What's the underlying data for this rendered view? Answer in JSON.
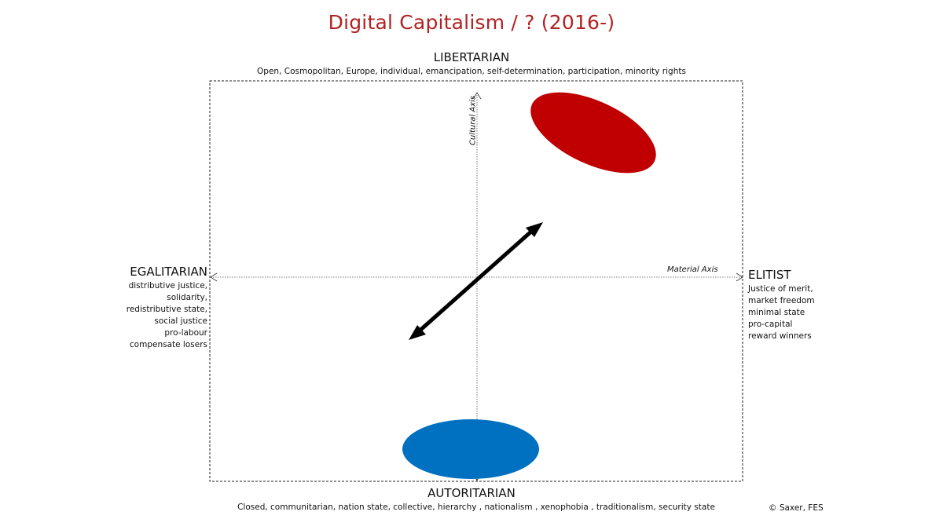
{
  "title": "Digital Capitalism /  ? (2016-)",
  "poles": {
    "top": {
      "label": "LIBERTARIAN",
      "description": "Open, Cosmopolitan, Europe, individual, emancipation, self-determination, participation, minority rights"
    },
    "bottom": {
      "label": "AUTORITARIAN",
      "description": "Closed, communitarian, nation state, collective, hierarchy , nationalism , xenophobia , traditionalism, security state"
    },
    "left": {
      "label": "EGALITARIAN",
      "items": [
        "distributive justice,",
        "solidarity,",
        "redistributive state,",
        "social justice",
        "pro-labour",
        "compensate losers"
      ]
    },
    "right": {
      "label": "ELITIST",
      "items": [
        "Justice of merit,",
        "market freedom",
        "minimal state",
        "pro-capital",
        "reward winners"
      ]
    }
  },
  "axes": {
    "cultural": "Cultural Axis",
    "material": "Material Axis"
  },
  "colors": {
    "title": "#b22222",
    "red_ellipse": "#c00000",
    "blue_ellipse": "#0070c0"
  },
  "copyright": "© Saxer, FES"
}
